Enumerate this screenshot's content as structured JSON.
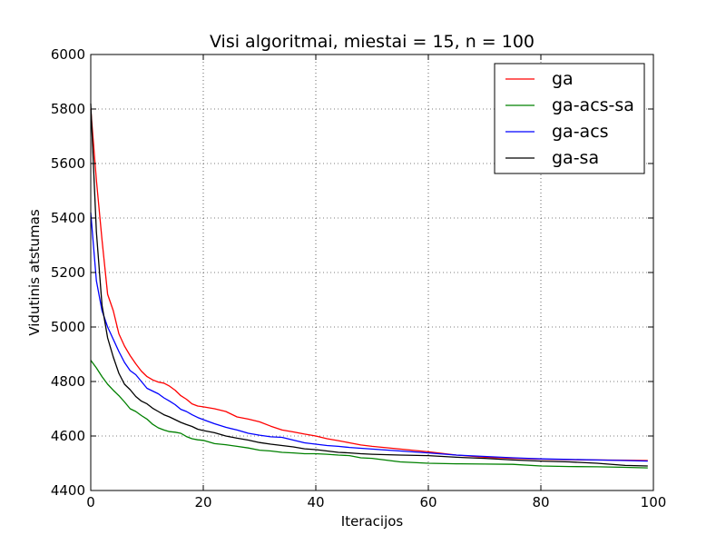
{
  "chart_data": {
    "type": "line",
    "title": "Visi algoritmai, miestai = 15, n = 100",
    "xlabel": "Iteracijos",
    "ylabel": "Vidutinis atstumas",
    "xlim": [
      0,
      100
    ],
    "ylim": [
      4400,
      6000
    ],
    "xticks": [
      0,
      20,
      40,
      60,
      80,
      100
    ],
    "yticks": [
      4400,
      4600,
      4800,
      5000,
      5200,
      5400,
      5600,
      5800,
      6000
    ],
    "grid": true,
    "legend_position": "top-right",
    "series": [
      {
        "name": "ga",
        "color": "#ff0000",
        "points": [
          [
            0,
            5800
          ],
          [
            1,
            5540
          ],
          [
            2,
            5320
          ],
          [
            3,
            5120
          ],
          [
            4,
            5060
          ],
          [
            5,
            4975
          ],
          [
            6,
            4930
          ],
          [
            7,
            4895
          ],
          [
            8,
            4865
          ],
          [
            9,
            4838
          ],
          [
            10,
            4818
          ],
          [
            11,
            4806
          ],
          [
            12,
            4798
          ],
          [
            13,
            4794
          ],
          [
            14,
            4783
          ],
          [
            15,
            4768
          ],
          [
            16,
            4748
          ],
          [
            17,
            4735
          ],
          [
            18,
            4718
          ],
          [
            19,
            4710
          ],
          [
            20,
            4707
          ],
          [
            22,
            4700
          ],
          [
            24,
            4690
          ],
          [
            26,
            4670
          ],
          [
            28,
            4662
          ],
          [
            30,
            4652
          ],
          [
            32,
            4636
          ],
          [
            34,
            4622
          ],
          [
            36,
            4615
          ],
          [
            38,
            4607
          ],
          [
            40,
            4600
          ],
          [
            42,
            4590
          ],
          [
            44,
            4583
          ],
          [
            46,
            4575
          ],
          [
            48,
            4567
          ],
          [
            50,
            4562
          ],
          [
            55,
            4552
          ],
          [
            60,
            4542
          ],
          [
            65,
            4530
          ],
          [
            70,
            4522
          ],
          [
            75,
            4518
          ],
          [
            80,
            4515
          ],
          [
            85,
            4513
          ],
          [
            90,
            4512
          ],
          [
            95,
            4511
          ],
          [
            99,
            4510
          ]
        ]
      },
      {
        "name": "ga-acs-sa",
        "color": "#008000",
        "points": [
          [
            0,
            4878
          ],
          [
            1,
            4850
          ],
          [
            2,
            4818
          ],
          [
            3,
            4790
          ],
          [
            4,
            4768
          ],
          [
            5,
            4748
          ],
          [
            6,
            4725
          ],
          [
            7,
            4700
          ],
          [
            8,
            4690
          ],
          [
            9,
            4675
          ],
          [
            10,
            4662
          ],
          [
            11,
            4643
          ],
          [
            12,
            4630
          ],
          [
            13,
            4622
          ],
          [
            14,
            4616
          ],
          [
            15,
            4614
          ],
          [
            16,
            4610
          ],
          [
            17,
            4598
          ],
          [
            18,
            4590
          ],
          [
            19,
            4586
          ],
          [
            20,
            4584
          ],
          [
            22,
            4572
          ],
          [
            24,
            4568
          ],
          [
            26,
            4562
          ],
          [
            28,
            4556
          ],
          [
            30,
            4548
          ],
          [
            32,
            4545
          ],
          [
            34,
            4540
          ],
          [
            36,
            4538
          ],
          [
            38,
            4535
          ],
          [
            40,
            4535
          ],
          [
            42,
            4533
          ],
          [
            44,
            4530
          ],
          [
            46,
            4528
          ],
          [
            48,
            4520
          ],
          [
            50,
            4518
          ],
          [
            55,
            4505
          ],
          [
            60,
            4500
          ],
          [
            65,
            4498
          ],
          [
            70,
            4497
          ],
          [
            75,
            4496
          ],
          [
            80,
            4490
          ],
          [
            85,
            4488
          ],
          [
            90,
            4487
          ],
          [
            95,
            4485
          ],
          [
            99,
            4483
          ]
        ]
      },
      {
        "name": "ga-acs",
        "color": "#0000ff",
        "points": [
          [
            0,
            5420
          ],
          [
            1,
            5170
          ],
          [
            2,
            5060
          ],
          [
            3,
            5000
          ],
          [
            4,
            4955
          ],
          [
            5,
            4910
          ],
          [
            6,
            4870
          ],
          [
            7,
            4840
          ],
          [
            8,
            4825
          ],
          [
            9,
            4800
          ],
          [
            10,
            4775
          ],
          [
            11,
            4765
          ],
          [
            12,
            4755
          ],
          [
            13,
            4740
          ],
          [
            14,
            4728
          ],
          [
            15,
            4715
          ],
          [
            16,
            4698
          ],
          [
            17,
            4690
          ],
          [
            18,
            4678
          ],
          [
            19,
            4668
          ],
          [
            20,
            4660
          ],
          [
            22,
            4645
          ],
          [
            24,
            4632
          ],
          [
            26,
            4622
          ],
          [
            28,
            4610
          ],
          [
            30,
            4603
          ],
          [
            32,
            4597
          ],
          [
            34,
            4595
          ],
          [
            36,
            4585
          ],
          [
            38,
            4575
          ],
          [
            40,
            4570
          ],
          [
            42,
            4565
          ],
          [
            44,
            4562
          ],
          [
            46,
            4558
          ],
          [
            48,
            4555
          ],
          [
            50,
            4552
          ],
          [
            55,
            4545
          ],
          [
            60,
            4538
          ],
          [
            65,
            4530
          ],
          [
            70,
            4525
          ],
          [
            75,
            4520
          ],
          [
            80,
            4516
          ],
          [
            85,
            4514
          ],
          [
            90,
            4512
          ],
          [
            95,
            4510
          ],
          [
            99,
            4508
          ]
        ]
      },
      {
        "name": "ga-sa",
        "color": "#000000",
        "points": [
          [
            0,
            5820
          ],
          [
            1,
            5350
          ],
          [
            2,
            5080
          ],
          [
            3,
            4960
          ],
          [
            4,
            4890
          ],
          [
            5,
            4830
          ],
          [
            6,
            4790
          ],
          [
            7,
            4770
          ],
          [
            8,
            4745
          ],
          [
            9,
            4728
          ],
          [
            10,
            4718
          ],
          [
            11,
            4702
          ],
          [
            12,
            4690
          ],
          [
            13,
            4678
          ],
          [
            14,
            4670
          ],
          [
            15,
            4660
          ],
          [
            16,
            4650
          ],
          [
            17,
            4642
          ],
          [
            18,
            4635
          ],
          [
            19,
            4625
          ],
          [
            20,
            4620
          ],
          [
            22,
            4612
          ],
          [
            24,
            4600
          ],
          [
            26,
            4592
          ],
          [
            28,
            4585
          ],
          [
            30,
            4576
          ],
          [
            32,
            4570
          ],
          [
            34,
            4565
          ],
          [
            36,
            4560
          ],
          [
            38,
            4553
          ],
          [
            40,
            4550
          ],
          [
            42,
            4545
          ],
          [
            44,
            4540
          ],
          [
            46,
            4538
          ],
          [
            48,
            4535
          ],
          [
            50,
            4533
          ],
          [
            55,
            4530
          ],
          [
            60,
            4528
          ],
          [
            65,
            4522
          ],
          [
            70,
            4518
          ],
          [
            75,
            4512
          ],
          [
            80,
            4508
          ],
          [
            85,
            4505
          ],
          [
            90,
            4500
          ],
          [
            95,
            4492
          ],
          [
            99,
            4490
          ]
        ]
      }
    ]
  }
}
